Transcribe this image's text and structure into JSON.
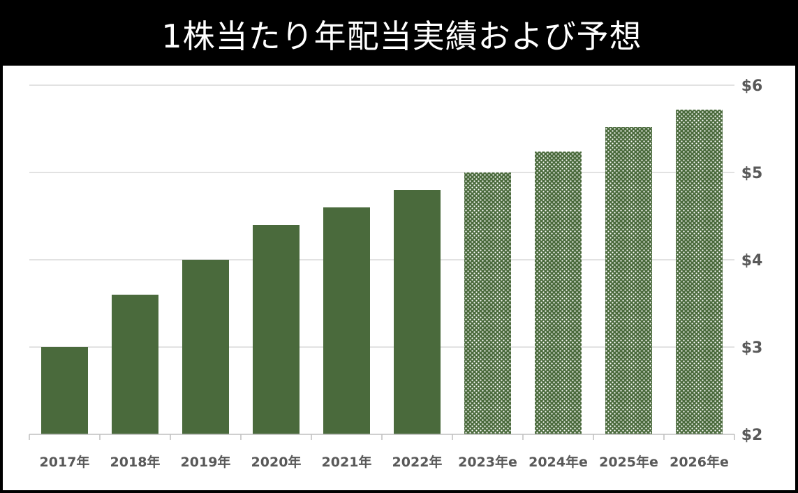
{
  "title": "1株当たり年配当実績および予想",
  "colors": {
    "bar": "#4a6a3c",
    "pattern_dot": "#ffffff",
    "grid": "#d9d9d9",
    "axis": "#bfbfbf",
    "tick_text": "#595959",
    "title_bg": "#000000",
    "title_text": "#ffffff"
  },
  "chart_data": {
    "type": "bar",
    "title": "1株当たり年配当実績および予想",
    "categories": [
      "2017年",
      "2018年",
      "2019年",
      "2020年",
      "2021年",
      "2022年",
      "2023年e",
      "2024年e",
      "2025年e",
      "2026年e"
    ],
    "values": [
      3.0,
      3.6,
      4.0,
      4.4,
      4.6,
      4.8,
      5.0,
      5.24,
      5.52,
      5.72
    ],
    "estimate": [
      false,
      false,
      false,
      false,
      false,
      false,
      true,
      true,
      true,
      true
    ],
    "ylim": [
      2,
      6
    ],
    "yticks": [
      2,
      3,
      4,
      5,
      6
    ],
    "ytick_labels": [
      "$2",
      "$3",
      "$4",
      "$5",
      "$6"
    ],
    "yaxis_side": "right",
    "grid": true,
    "legend": "none",
    "xlabel": "",
    "ylabel": ""
  }
}
